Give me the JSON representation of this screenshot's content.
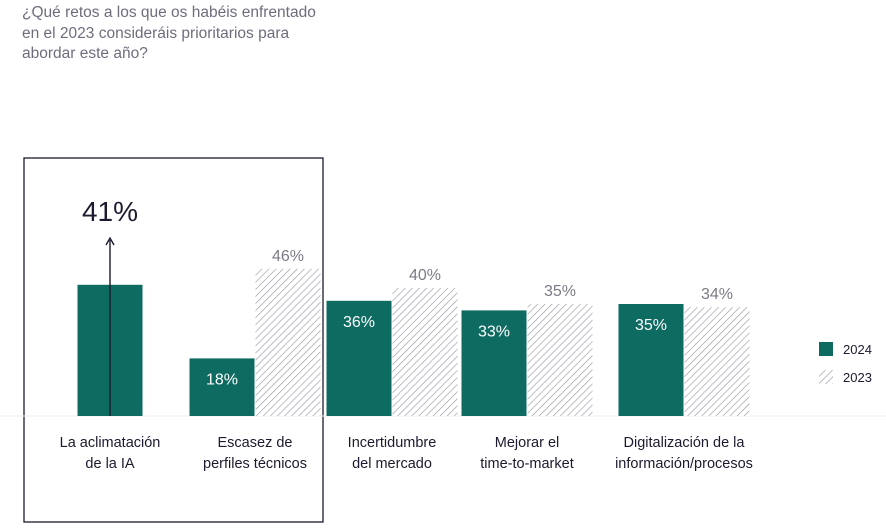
{
  "question": "¿Qué retos a los que os habéis enfrentado en el 2023 consideráis prioritarios para abordar este año?",
  "colors": {
    "series_2024": "#0e6b62",
    "series_2023_hatch": "#9a9aa6",
    "label_on_bar": "#ffffff",
    "label_above": "#7a7a86",
    "highlight_value": "#1c1a2e",
    "category_text": "#1c1a2e",
    "question_text": "#6f6c7c"
  },
  "chart_data": {
    "type": "bar",
    "categories": [
      [
        "La aclimatación",
        "de la IA"
      ],
      [
        "Escasez de",
        "perfiles técnicos"
      ],
      [
        "Incertidumbre",
        "del mercado"
      ],
      [
        "Mejorar el",
        "time-to-market"
      ],
      [
        "Digitalización de la",
        "información/procesos"
      ]
    ],
    "series": [
      {
        "name": "2024",
        "values": [
          41,
          18,
          36,
          33,
          35
        ],
        "labels": [
          "41%",
          "18%",
          "36%",
          "33%",
          "35%"
        ]
      },
      {
        "name": "2023",
        "values": [
          null,
          46,
          40,
          35,
          34
        ],
        "labels": [
          "",
          "46%",
          "40%",
          "35%",
          "34%"
        ]
      }
    ],
    "highlighted_category": 0,
    "legend_position": "right",
    "grid": false
  }
}
